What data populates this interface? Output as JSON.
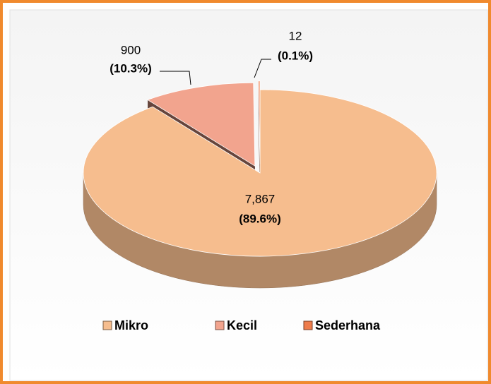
{
  "chart_data": {
    "type": "pie3d",
    "categories": [
      "Mikro",
      "Kecil",
      "Sederhana"
    ],
    "values": [
      7867,
      900,
      12
    ],
    "value_labels": [
      "7,867",
      "900",
      "12"
    ],
    "percent_labels": [
      "(89.6%)",
      "(10.3%)",
      "(0.1%)"
    ],
    "colors": [
      "#f6bd8e",
      "#f2a48e",
      "#ef7d4c"
    ],
    "legend": "bottom"
  }
}
